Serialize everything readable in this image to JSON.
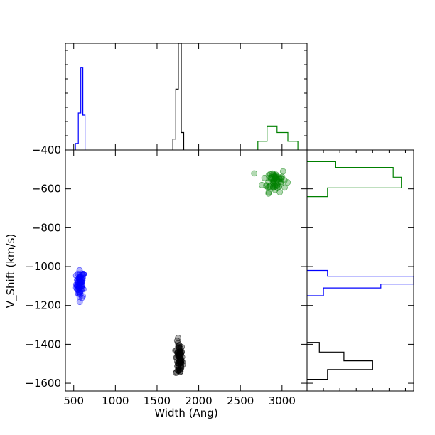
{
  "chart_data": {
    "type": "scatter",
    "xlabel": "Width (Ang)",
    "ylabel": "V_Shift (km/s)",
    "xlim": [
      400,
      3300
    ],
    "ylim": [
      -1640,
      -400
    ],
    "xticks": [
      500,
      1000,
      1500,
      2000,
      2500,
      3000
    ],
    "yticks": [
      -1600,
      -1400,
      -1200,
      -1000,
      -800,
      -600,
      -400
    ],
    "grid": false,
    "marginal_histograms": {
      "top": {
        "orientation": "vertical",
        "x_axis": "Width (Ang)"
      },
      "right": {
        "orientation": "horizontal",
        "y_axis": "V_Shift (km/s)"
      }
    },
    "series": [
      {
        "color": "#0000ff",
        "center": {
          "x": 580,
          "y": -1090
        },
        "spread": {
          "x": 25,
          "y": 35
        },
        "count": 60,
        "width_histogram": [
          {
            "x0": 520,
            "x1": 555,
            "count": 3
          },
          {
            "x0": 555,
            "x1": 585,
            "count": 17
          },
          {
            "x0": 585,
            "x1": 610,
            "count": 38
          },
          {
            "x0": 610,
            "x1": 635,
            "count": 16
          }
        ],
        "vshift_histogram": [
          {
            "y0": -1150,
            "y1": -1110,
            "count": 4
          },
          {
            "y0": -1110,
            "y1": -1090,
            "count": 18
          },
          {
            "y0": -1090,
            "y1": -1050,
            "count": 26
          },
          {
            "y0": -1050,
            "y1": -1020,
            "count": 5
          }
        ]
      },
      {
        "color": "#000000",
        "center": {
          "x": 1765,
          "y": -1480
        },
        "spread": {
          "x": 20,
          "y": 45
        },
        "count": 70,
        "width_histogram": [
          {
            "x0": 1690,
            "x1": 1725,
            "count": 5
          },
          {
            "x0": 1725,
            "x1": 1755,
            "count": 28
          },
          {
            "x0": 1755,
            "x1": 1790,
            "count": 49
          },
          {
            "x0": 1790,
            "x1": 1820,
            "count": 8
          }
        ],
        "vshift_histogram": [
          {
            "y0": -1580,
            "y1": -1530,
            "count": 5
          },
          {
            "y0": -1530,
            "y1": -1485,
            "count": 16
          },
          {
            "y0": -1485,
            "y1": -1440,
            "count": 9
          },
          {
            "y0": -1440,
            "y1": -1390,
            "count": 3
          }
        ]
      },
      {
        "color": "#008000",
        "center": {
          "x": 2910,
          "y": -555
        },
        "spread": {
          "x": 70,
          "y": 30
        },
        "count": 60,
        "width_histogram": [
          {
            "x0": 2710,
            "x1": 2820,
            "count": 4
          },
          {
            "x0": 2820,
            "x1": 2940,
            "count": 11
          },
          {
            "x0": 2940,
            "x1": 3070,
            "count": 8
          },
          {
            "x0": 3070,
            "x1": 3190,
            "count": 4
          }
        ],
        "vshift_histogram": [
          {
            "y0": -640,
            "y1": -595,
            "count": 5
          },
          {
            "y0": -595,
            "y1": -540,
            "count": 23
          },
          {
            "y0": -540,
            "y1": -490,
            "count": 21
          },
          {
            "y0": -490,
            "y1": -460,
            "count": 7
          }
        ]
      }
    ]
  }
}
